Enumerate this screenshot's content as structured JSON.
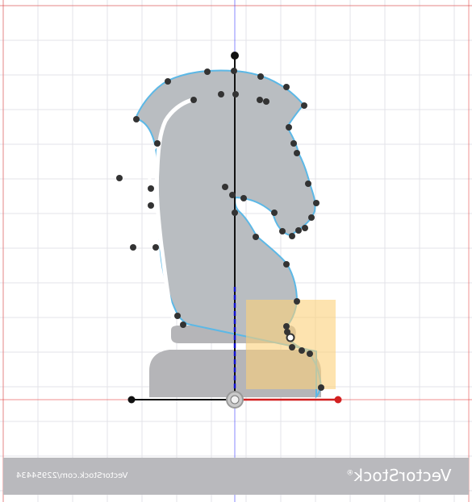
{
  "colors": {
    "background": "#ffffff",
    "grid": "#e3e3e8",
    "guide_red": "#e64545",
    "guide_blue": "#3b3bff",
    "shape_fill": "#b9bdc1",
    "shape_stroke": "#5cb8e6",
    "base_fill": "#b5b5b8",
    "anchor": "#333333",
    "selection": "#fbd17a",
    "x_axis_handle": "#d22020",
    "y_axis_handle": "#1010d0",
    "banner": "#b9b9bd"
  },
  "tools": {
    "rotate_handle": "Rotate handle",
    "axis_origin": "Origin handle",
    "x_axis_handle": "X axis handle",
    "y_axis_handle": "Y axis handle",
    "scale_handle": "Scale handle"
  },
  "watermark": {
    "brand": "VectorStock",
    "registered": "®",
    "credit": "VectorStock.com/22954434"
  }
}
